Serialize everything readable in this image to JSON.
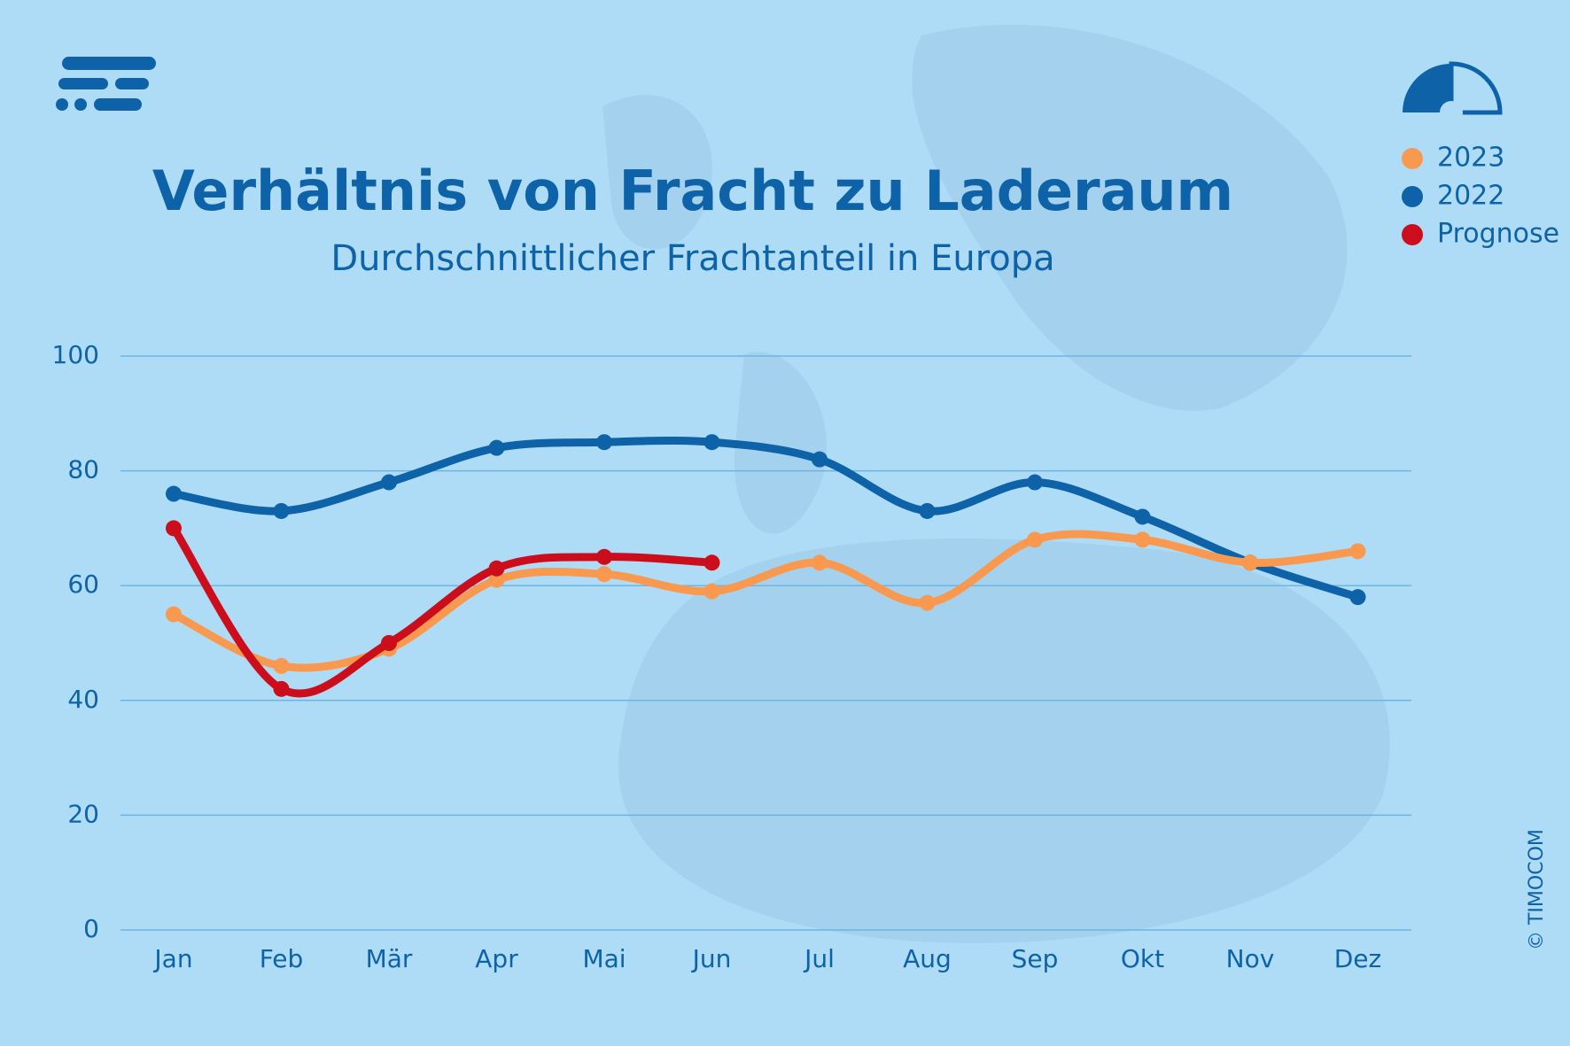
{
  "chart_data": {
    "type": "line",
    "title": "Verhältnis von Fracht zu Laderaum",
    "subtitle": "Durchschnittlicher Frachtanteil in Europa",
    "credit": "© TIMOCOM",
    "categories": [
      "Jan",
      "Feb",
      "Mär",
      "Apr",
      "Mai",
      "Jun",
      "Jul",
      "Aug",
      "Sep",
      "Okt",
      "Nov",
      "Dez"
    ],
    "series": [
      {
        "name": "2023",
        "color": "#f9994f",
        "values": [
          55,
          46,
          49,
          61,
          62,
          59,
          64,
          57,
          68,
          68,
          64,
          66
        ]
      },
      {
        "name": "2022",
        "color": "#0d62a8",
        "values": [
          76,
          73,
          78,
          84,
          85,
          85,
          82,
          73,
          78,
          72,
          64,
          58
        ]
      },
      {
        "name": "Prognose",
        "color": "#cc0e1c",
        "values": [
          70,
          42,
          50,
          63,
          65,
          64,
          null,
          null,
          null,
          null,
          null,
          null
        ]
      }
    ],
    "ylim": [
      0,
      100
    ],
    "yticks": [
      0,
      20,
      40,
      60,
      80,
      100
    ],
    "grid": true,
    "legend": "top-right"
  }
}
